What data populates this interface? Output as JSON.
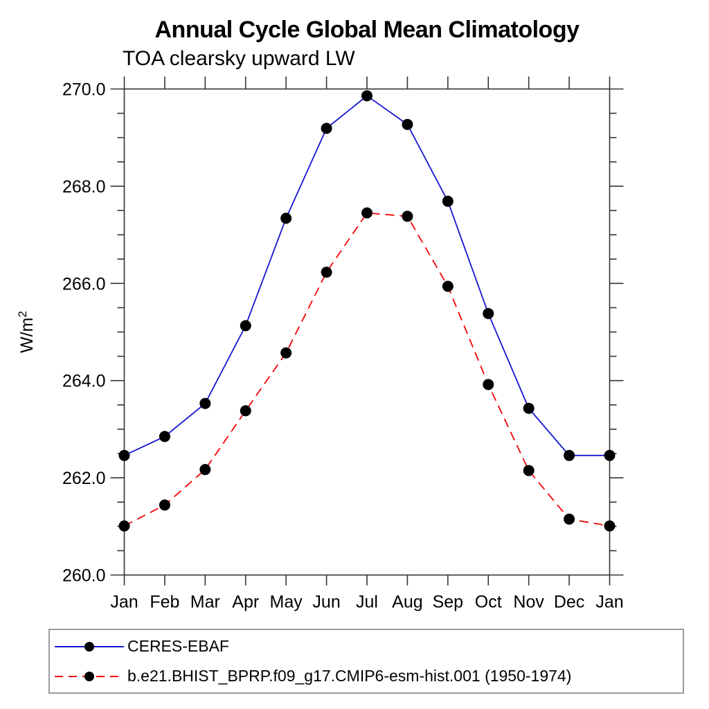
{
  "chart": {
    "title": "Annual Cycle Global Mean Climatology",
    "subtitle": "TOA clearsky upward LW"
  },
  "chart_data": {
    "type": "line",
    "title": "Annual Cycle Global Mean Climatology",
    "subtitle": "TOA clearsky upward LW",
    "xlabel": "",
    "ylabel": "W/m²",
    "ylabel_display": {
      "base": "W/m",
      "super": "2"
    },
    "x_tick_labels": [
      "Jan",
      "Feb",
      "Mar",
      "Apr",
      "May",
      "Jun",
      "Jul",
      "Aug",
      "Sep",
      "Oct",
      "Nov",
      "Dec",
      "Jan"
    ],
    "ylim": [
      260.0,
      270.0
    ],
    "y_major_step": 2.0,
    "y_minor_step": 0.5,
    "y_tick_labels": [
      "260.0",
      "262.0",
      "264.0",
      "266.0",
      "268.0",
      "270.0"
    ],
    "grid": false,
    "legend_position": "bottom-left-box",
    "axis_color": "#333333",
    "marker_color": "#000000",
    "series": [
      {
        "name": "CERES-EBAF",
        "color": "#1414d2",
        "line_style": "solid",
        "marker": "filled-circle",
        "values": [
          262.46,
          262.85,
          263.53,
          265.13,
          267.34,
          269.19,
          269.86,
          269.27,
          267.69,
          265.38,
          263.43,
          262.46,
          262.46
        ]
      },
      {
        "name": "b.e21.BHIST_BPRP.f09_g17.CMIP6-esm-hist.001 (1950-1974)",
        "color": "#f20000",
        "line_style": "dashed",
        "marker": "filled-circle",
        "values": [
          261.01,
          261.44,
          262.17,
          263.38,
          264.57,
          266.23,
          267.45,
          267.38,
          265.94,
          263.92,
          262.15,
          261.15,
          261.01
        ]
      }
    ]
  }
}
